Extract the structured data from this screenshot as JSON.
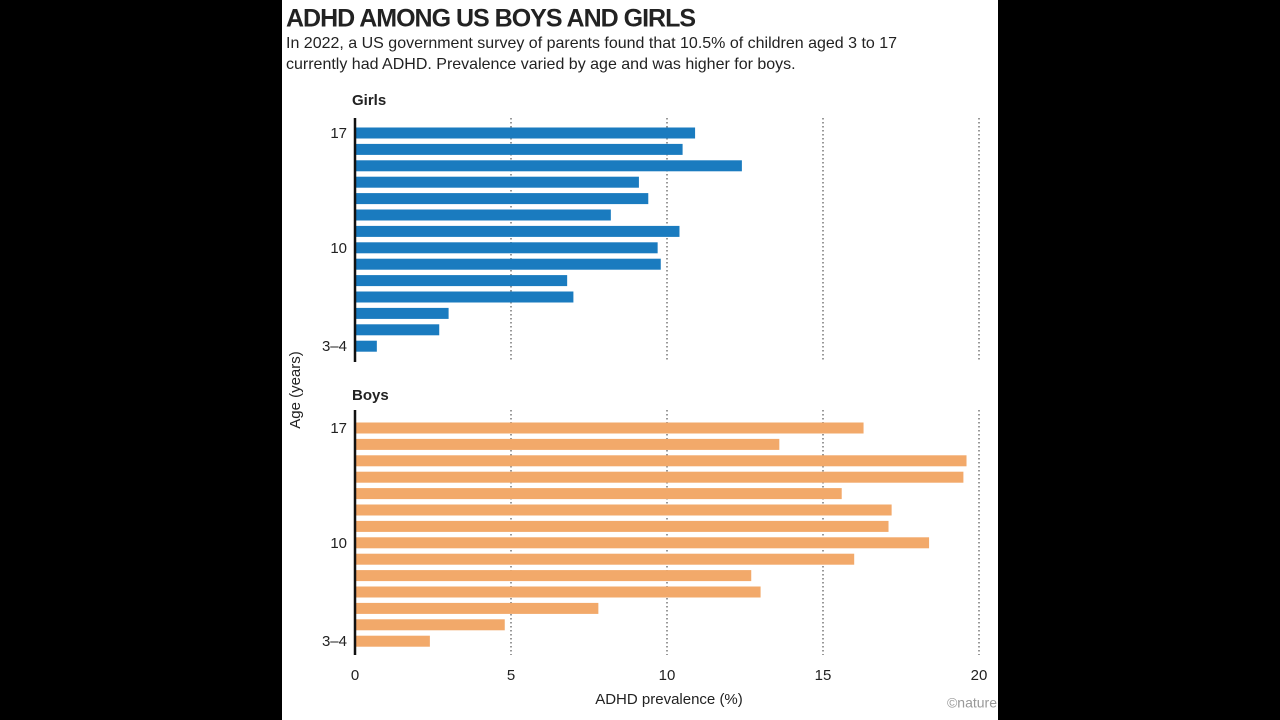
{
  "chart_data": {
    "type": "bar",
    "orientation": "horizontal",
    "title": "ADHD AMONG US BOYS AND GIRLS",
    "subtitle": [
      "In 2022, a US government survey of parents found that 10.5% of children aged 3 to 17",
      "currently had ADHD. Prevalence varied by age and was higher for boys."
    ],
    "xlabel": "ADHD prevalence (%)",
    "ylabel": "Age (years)",
    "credit": "©nature",
    "categories": [
      "17",
      null,
      null,
      null,
      null,
      null,
      null,
      "10",
      null,
      null,
      null,
      null,
      null,
      "3–4"
    ],
    "xlim": [
      0,
      20
    ],
    "xticks": [
      0,
      5,
      10,
      15,
      20
    ],
    "grid": true,
    "series": [
      {
        "name": "Girls",
        "color": "#1a7bbf",
        "values": [
          10.9,
          10.5,
          12.4,
          9.1,
          9.4,
          8.2,
          10.4,
          9.7,
          9.8,
          6.8,
          7.0,
          3.0,
          2.7,
          0.7
        ]
      },
      {
        "name": "Boys",
        "color": "#f2a96a",
        "values": [
          16.3,
          13.6,
          19.6,
          19.5,
          15.6,
          17.2,
          17.1,
          18.4,
          16.0,
          12.7,
          13.0,
          7.8,
          4.8,
          2.4
        ]
      }
    ]
  }
}
